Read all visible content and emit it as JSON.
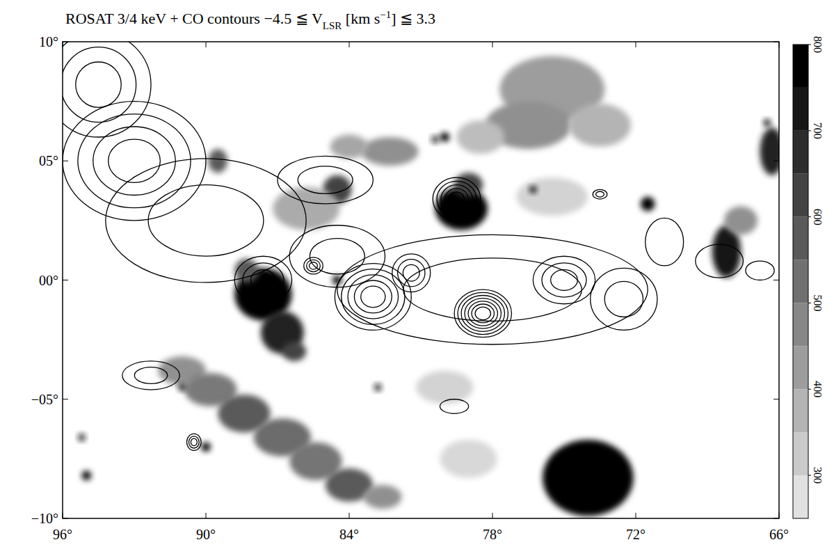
{
  "chart_data": {
    "type": "contour_image",
    "title": [
      "ROSAT 3/4 keV + CO contours −4.5 ≦ V",
      "LSR",
      " [km s",
      "−1",
      "] ≦ 3.3"
    ],
    "xlim": [
      96,
      66
    ],
    "ylim": [
      -10,
      10
    ],
    "xticks": [
      {
        "value": 96,
        "label": "96°"
      },
      {
        "value": 90,
        "label": "90°"
      },
      {
        "value": 84,
        "label": "84°"
      },
      {
        "value": 78,
        "label": "78°"
      },
      {
        "value": 72,
        "label": "72°"
      },
      {
        "value": 66,
        "label": "66°"
      }
    ],
    "yticks": [
      {
        "value": 10,
        "label": "10°"
      },
      {
        "value": 5,
        "label": "05°"
      },
      {
        "value": 0,
        "label": "00°"
      },
      {
        "value": -5,
        "label": "−05°"
      },
      {
        "value": -10,
        "label": "−10°"
      }
    ],
    "colorbar": {
      "range": [
        250,
        800
      ],
      "ticks": [
        300,
        400,
        500,
        600,
        700,
        800
      ]
    },
    "xray": [
      {
        "l": 74.0,
        "b": -8.3,
        "rx": 1.9,
        "ry": 1.6,
        "value": 900
      },
      {
        "l": 87.6,
        "b": -0.6,
        "rx": 1.2,
        "ry": 1.1,
        "value": 800
      },
      {
        "l": 86.8,
        "b": -2.2,
        "rx": 0.9,
        "ry": 0.9,
        "value": 720
      },
      {
        "l": 86.3,
        "b": -3.0,
        "rx": 0.5,
        "ry": 0.4,
        "value": 650
      },
      {
        "l": 88.3,
        "b": 0.4,
        "rx": 0.5,
        "ry": 0.5,
        "value": 600
      },
      {
        "l": 79.3,
        "b": 3.0,
        "rx": 1.1,
        "ry": 0.9,
        "value": 800
      },
      {
        "l": 79.0,
        "b": 4.0,
        "rx": 0.6,
        "ry": 0.5,
        "value": 650
      },
      {
        "l": 84.5,
        "b": 3.8,
        "rx": 0.6,
        "ry": 0.6,
        "value": 650
      },
      {
        "l": 85.8,
        "b": 3.0,
        "rx": 1.4,
        "ry": 0.9,
        "value": 420
      },
      {
        "l": 82.3,
        "b": 5.4,
        "rx": 1.2,
        "ry": 0.6,
        "value": 480
      },
      {
        "l": 84.0,
        "b": 5.6,
        "rx": 0.8,
        "ry": 0.5,
        "value": 430
      },
      {
        "l": 89.5,
        "b": 5.0,
        "rx": 0.4,
        "ry": 0.5,
        "value": 600
      },
      {
        "l": 75.5,
        "b": 8.0,
        "rx": 2.2,
        "ry": 1.4,
        "value": 450
      },
      {
        "l": 76.5,
        "b": 6.5,
        "rx": 1.8,
        "ry": 1.0,
        "value": 480
      },
      {
        "l": 73.5,
        "b": 6.5,
        "rx": 1.3,
        "ry": 0.9,
        "value": 400
      },
      {
        "l": 78.5,
        "b": 6.0,
        "rx": 1.0,
        "ry": 0.7,
        "value": 380
      },
      {
        "l": 75.5,
        "b": 3.5,
        "rx": 1.5,
        "ry": 0.8,
        "value": 330
      },
      {
        "l": 68.2,
        "b": 1.2,
        "rx": 0.6,
        "ry": 1.1,
        "value": 760
      },
      {
        "l": 67.6,
        "b": 2.5,
        "rx": 0.7,
        "ry": 0.6,
        "value": 480
      },
      {
        "l": 66.3,
        "b": 5.4,
        "rx": 0.5,
        "ry": 1.0,
        "value": 720
      },
      {
        "l": 91.0,
        "b": -3.8,
        "rx": 1.0,
        "ry": 0.6,
        "value": 480
      },
      {
        "l": 89.8,
        "b": -4.6,
        "rx": 1.1,
        "ry": 0.7,
        "value": 530
      },
      {
        "l": 88.4,
        "b": -5.6,
        "rx": 1.1,
        "ry": 0.8,
        "value": 600
      },
      {
        "l": 86.8,
        "b": -6.6,
        "rx": 1.2,
        "ry": 0.8,
        "value": 560
      },
      {
        "l": 85.4,
        "b": -7.6,
        "rx": 1.1,
        "ry": 0.8,
        "value": 540
      },
      {
        "l": 84.0,
        "b": -8.6,
        "rx": 1.0,
        "ry": 0.7,
        "value": 600
      },
      {
        "l": 82.6,
        "b": -9.1,
        "rx": 0.8,
        "ry": 0.5,
        "value": 480
      },
      {
        "l": 80.0,
        "b": -4.5,
        "rx": 1.2,
        "ry": 0.7,
        "value": 330
      },
      {
        "l": 79.0,
        "b": -7.5,
        "rx": 1.2,
        "ry": 0.8,
        "value": 320
      },
      {
        "l": 71.5,
        "b": 3.2,
        "rx": 0.3,
        "ry": 0.3,
        "value": 850
      },
      {
        "l": 80.0,
        "b": 6.0,
        "rx": 0.2,
        "ry": 0.2,
        "value": 850
      },
      {
        "l": 95.0,
        "b": -8.2,
        "rx": 0.2,
        "ry": 0.2,
        "value": 850
      },
      {
        "l": 90.0,
        "b": -7.0,
        "rx": 0.2,
        "ry": 0.2,
        "value": 850
      },
      {
        "l": 91.0,
        "b": -4.5,
        "rx": 0.15,
        "ry": 0.15,
        "value": 800
      },
      {
        "l": 84.5,
        "b": 0.0,
        "rx": 0.2,
        "ry": 0.2,
        "value": 850
      },
      {
        "l": 76.3,
        "b": 3.8,
        "rx": 0.15,
        "ry": 0.15,
        "value": 800
      },
      {
        "l": 66.5,
        "b": 6.6,
        "rx": 0.15,
        "ry": 0.15,
        "value": 800
      },
      {
        "l": 95.2,
        "b": -6.6,
        "rx": 0.15,
        "ry": 0.15,
        "value": 750
      },
      {
        "l": 82.8,
        "b": -4.5,
        "rx": 0.15,
        "ry": 0.15,
        "value": 750
      },
      {
        "l": 80.4,
        "b": 5.9,
        "rx": 0.15,
        "ry": 0.15,
        "value": 750
      }
    ],
    "co_contours": [
      {
        "l": 78.0,
        "b": -0.4,
        "rx": 6.5,
        "ry": 2.3,
        "rings": 2
      },
      {
        "l": 83.0,
        "b": -0.7,
        "rx": 1.6,
        "ry": 1.4,
        "rings": 5
      },
      {
        "l": 78.4,
        "b": -1.4,
        "rx": 1.2,
        "ry": 1.0,
        "rings": 7
      },
      {
        "l": 81.4,
        "b": 0.3,
        "rx": 0.8,
        "ry": 0.8,
        "rings": 3
      },
      {
        "l": 75.0,
        "b": 0.0,
        "rx": 1.3,
        "ry": 1.0,
        "rings": 3
      },
      {
        "l": 72.5,
        "b": -0.8,
        "rx": 1.4,
        "ry": 1.3,
        "rings": 2
      },
      {
        "l": 79.5,
        "b": 3.4,
        "rx": 1.0,
        "ry": 0.9,
        "rings": 5
      },
      {
        "l": 84.5,
        "b": 1.0,
        "rx": 2.0,
        "ry": 1.3,
        "rings": 2
      },
      {
        "l": 87.6,
        "b": 0.0,
        "rx": 1.2,
        "ry": 1.0,
        "rings": 3
      },
      {
        "l": 85.5,
        "b": 0.6,
        "rx": 0.4,
        "ry": 0.35,
        "rings": 3
      },
      {
        "l": 93.0,
        "b": 5.0,
        "rx": 3.0,
        "ry": 2.5,
        "rings": 4
      },
      {
        "l": 90.0,
        "b": 2.5,
        "rx": 4.2,
        "ry": 2.6,
        "rings": 2
      },
      {
        "l": 94.5,
        "b": 8.2,
        "rx": 2.2,
        "ry": 2.2,
        "rings": 3
      },
      {
        "l": 85.0,
        "b": 4.2,
        "rx": 2.0,
        "ry": 1.0,
        "rings": 2
      },
      {
        "l": 68.5,
        "b": 0.8,
        "rx": 1.0,
        "ry": 0.7,
        "rings": 1
      },
      {
        "l": 70.8,
        "b": 1.6,
        "rx": 0.8,
        "ry": 1.0,
        "rings": 1
      },
      {
        "l": 92.3,
        "b": -4.0,
        "rx": 1.2,
        "ry": 0.6,
        "rings": 2
      },
      {
        "l": 90.5,
        "b": -6.8,
        "rx": 0.3,
        "ry": 0.35,
        "rings": 3
      },
      {
        "l": 73.5,
        "b": 3.6,
        "rx": 0.3,
        "ry": 0.2,
        "rings": 2
      },
      {
        "l": 79.6,
        "b": -5.3,
        "rx": 0.6,
        "ry": 0.3,
        "rings": 1
      },
      {
        "l": 66.8,
        "b": 0.4,
        "rx": 0.6,
        "ry": 0.4,
        "rings": 1
      }
    ]
  }
}
